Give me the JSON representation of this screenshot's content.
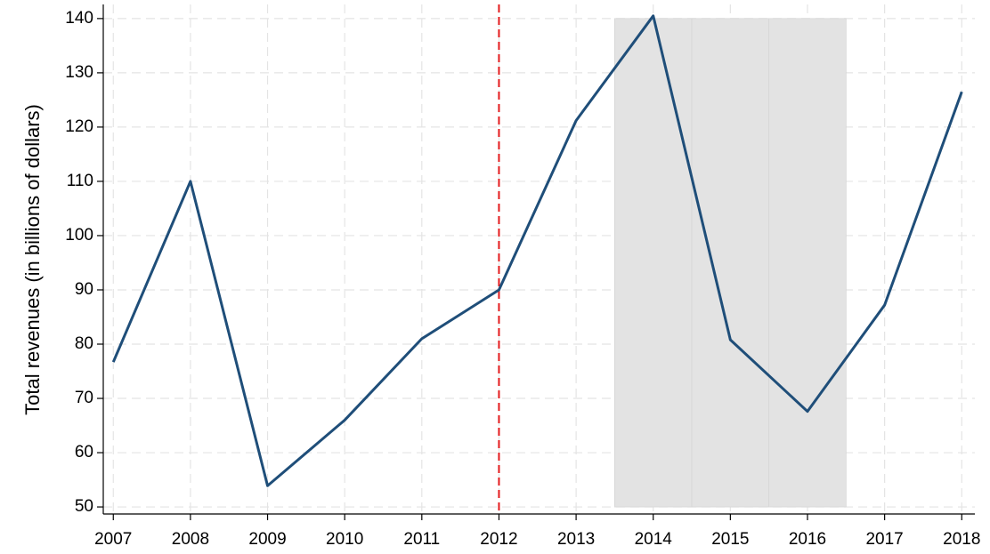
{
  "chart_data": {
    "type": "line",
    "y_label": "Total revenues (in billions of dollars)",
    "x": [
      2007,
      2008,
      2009,
      2010,
      2011,
      2012,
      2013,
      2014,
      2015,
      2016,
      2017,
      2018
    ],
    "values": [
      76.7,
      110,
      53.9,
      66,
      81,
      90,
      121.2,
      140.5,
      80.8,
      67.6,
      87.2,
      126.5
    ],
    "color": "#1f4e79",
    "xlim": [
      2006.87,
      2018.17
    ],
    "xticks": [
      2007,
      2008,
      2009,
      2010,
      2011,
      2012,
      2013,
      2014,
      2015,
      2016,
      2017,
      2018
    ],
    "ylim": [
      48.7,
      142.6
    ],
    "yticks": [
      50,
      60,
      70,
      80,
      90,
      100,
      110,
      120,
      130,
      140
    ],
    "grid": true,
    "vline": {
      "x": 2012,
      "color": "#e41a1c"
    },
    "shade": {
      "x": [
        2014,
        2015,
        2016
      ],
      "range": [
        50,
        140
      ],
      "color": "#e3e3e3"
    }
  }
}
